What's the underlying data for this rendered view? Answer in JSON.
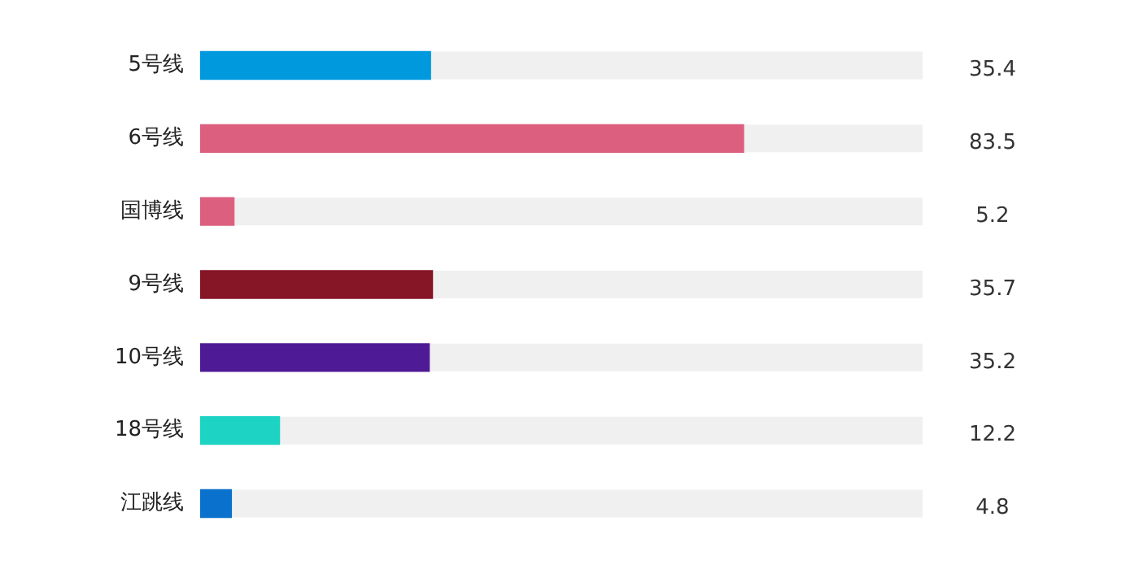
{
  "chart_data": {
    "type": "bar",
    "orientation": "horizontal",
    "categories": [
      "5号线",
      "6号线",
      "国博线",
      "9号线",
      "10号线",
      "18号线",
      "江跳线"
    ],
    "values": [
      35.4,
      83.5,
      5.2,
      35.7,
      35.2,
      12.2,
      4.8
    ],
    "colors": [
      "#0099dd",
      "#dd5f7f",
      "#dd5f7f",
      "#861526",
      "#4f1a96",
      "#1dd3c3",
      "#0a72cc"
    ],
    "xlim": [
      0,
      111
    ],
    "data_labels": true,
    "grid": false,
    "legend": false,
    "tick_labels": "y"
  }
}
